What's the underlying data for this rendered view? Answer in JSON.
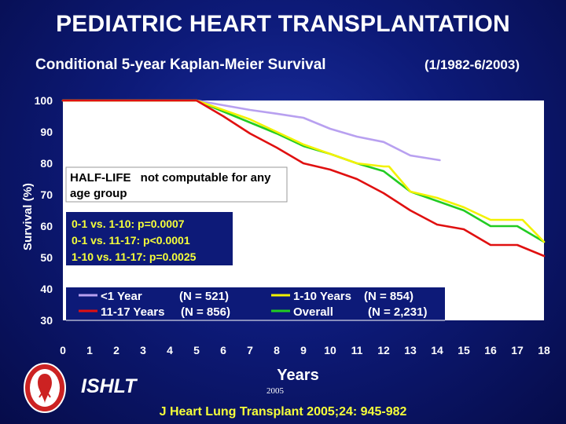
{
  "header": {
    "title": "PEDIATRIC HEART TRANSPLANTATION",
    "subtitle": "Conditional 5-year Kaplan-Meier Survival",
    "date_range": "(1/1982-6/2003)"
  },
  "colors": {
    "under1": "#b8a0f0",
    "age1_10": "#f2f200",
    "age11_17": "#e01010",
    "overall": "#22cc22",
    "yellow_text": "#f5ff3a"
  },
  "chart_data": {
    "type": "line",
    "title": "Conditional 5-year Kaplan-Meier Survival",
    "xlabel": "Years",
    "ylabel": "Survival (%)",
    "xlim": [
      0,
      18
    ],
    "ylim": [
      30,
      100
    ],
    "xticks": [
      "0",
      "1",
      "2",
      "3",
      "4",
      "5",
      "6",
      "7",
      "8",
      "9",
      "10",
      "11",
      "12",
      "13",
      "14",
      "15",
      "16",
      "17",
      "18"
    ],
    "yticks": [
      "30",
      "40",
      "50",
      "60",
      "70",
      "80",
      "90",
      "100"
    ],
    "grid": false,
    "series": [
      {
        "name": "<1 Year",
        "n_label": "(N = 521)",
        "color_key": "under1",
        "x": [
          0,
          5,
          6,
          7,
          8,
          9,
          10,
          11,
          12,
          13,
          14.1
        ],
        "y": [
          100,
          100,
          98.5,
          97,
          95.8,
          94.5,
          91,
          88.5,
          86.8,
          82.5,
          81
        ]
      },
      {
        "name": "1-10 Years",
        "n_label": "(N = 854)",
        "color_key": "age1_10",
        "x": [
          0,
          5,
          6,
          7,
          8,
          9,
          10,
          11,
          12,
          12.2,
          13,
          14,
          15,
          16,
          17,
          17.2,
          18
        ],
        "y": [
          100,
          100,
          97,
          94,
          90,
          86,
          83,
          80,
          79,
          79,
          71,
          69,
          66,
          62,
          62,
          62,
          55
        ]
      },
      {
        "name": "11-17 Years",
        "n_label": "(N = 856)",
        "color_key": "age11_17",
        "x": [
          0,
          5,
          6,
          7,
          8,
          9,
          10,
          11,
          12,
          13,
          14,
          15,
          16,
          16.2,
          17,
          18
        ],
        "y": [
          100,
          100,
          95,
          89.5,
          85,
          80,
          78,
          75,
          70.5,
          65,
          60.5,
          59,
          54,
          54,
          54,
          50.5
        ]
      },
      {
        "name": "Overall",
        "n_label": "(N = 2,231)",
        "color_key": "overall",
        "x": [
          0,
          5,
          6,
          7,
          8,
          9,
          10,
          11,
          12,
          13,
          14,
          15,
          16,
          17,
          18
        ],
        "y": [
          100,
          100,
          96.5,
          93,
          89.5,
          85.5,
          83,
          80,
          77.5,
          71,
          68,
          65,
          60,
          60,
          55
        ]
      }
    ],
    "annotations": {
      "half_life_title": "HALF-LIFE",
      "half_life_text": "not computable for any",
      "half_life_text2": "age group",
      "pvalues": [
        "0-1 vs. 1-10: p=0.0007",
        "0-1 vs. 11-17: p<0.0001",
        "1-10 vs. 11-17: p=0.0025"
      ]
    }
  },
  "footer": {
    "org": "ISHLT",
    "year": "2005",
    "citation": "J Heart Lung Transplant 2005;24: 945-982"
  }
}
